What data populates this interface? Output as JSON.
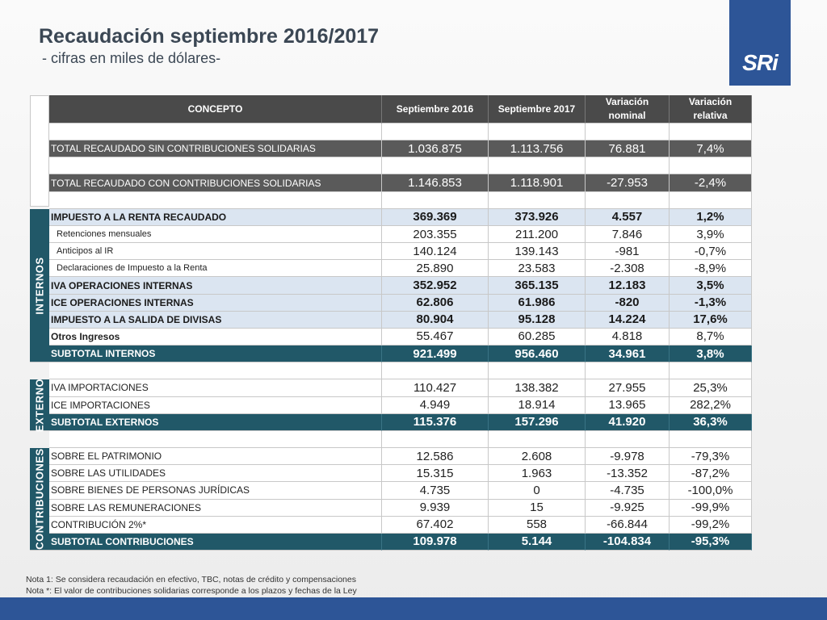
{
  "header": {
    "title": "Recaudación septiembre 2016/2017",
    "subtitle": "- cifras en miles de dólares-",
    "logo": "SRi"
  },
  "table": {
    "columns": [
      "CONCEPTO",
      "Septiembre 2016",
      "Septiembre 2017",
      "Variación nominal",
      "Variación relativa"
    ],
    "top_rows": [
      {
        "concept": "TOTAL RECAUDADO SIN CONTRIBUCIONES SOLIDARIAS",
        "values": [
          "1.036.875",
          "1.113.756",
          "76.881",
          "7,4%"
        ]
      },
      {
        "concept": "TOTAL RECAUDADO CON CONTRIBUCIONES SOLIDARIAS",
        "values": [
          "1.146.853",
          "1.118.901",
          "-27.953",
          "-2,4%"
        ]
      }
    ],
    "groups": [
      {
        "label": "INTERNOS",
        "rows": [
          {
            "concept": "IMPUESTO A LA RENTA RECAUDADO",
            "values": [
              "369.369",
              "373.926",
              "4.557",
              "1,2%"
            ]
          },
          {
            "concept": "Retenciones mensuales",
            "values": [
              "203.355",
              "211.200",
              "7.846",
              "3,9%"
            ]
          },
          {
            "concept": "Anticipos al IR",
            "values": [
              "140.124",
              "139.143",
              "-981",
              "-0,7%"
            ]
          },
          {
            "concept": "Declaraciones de Impuesto a la Renta",
            "values": [
              "25.890",
              "23.583",
              "-2.308",
              "-8,9%"
            ]
          },
          {
            "concept": "IVA OPERACIONES INTERNAS",
            "values": [
              "352.952",
              "365.135",
              "12.183",
              "3,5%"
            ]
          },
          {
            "concept": "ICE OPERACIONES INTERNAS",
            "values": [
              "62.806",
              "61.986",
              "-820",
              "-1,3%"
            ]
          },
          {
            "concept": "IMPUESTO A LA SALIDA DE DIVISAS",
            "values": [
              "80.904",
              "95.128",
              "14.224",
              "17,6%"
            ]
          },
          {
            "concept": "Otros Ingresos",
            "values": [
              "55.467",
              "60.285",
              "4.818",
              "8,7%"
            ]
          },
          {
            "concept": "SUBTOTAL INTERNOS",
            "values": [
              "921.499",
              "956.460",
              "34.961",
              "3,8%"
            ]
          }
        ]
      },
      {
        "label": "EXTERNO",
        "rows": [
          {
            "concept": "IVA IMPORTACIONES",
            "values": [
              "110.427",
              "138.382",
              "27.955",
              "25,3%"
            ]
          },
          {
            "concept": "ICE IMPORTACIONES",
            "values": [
              "4.949",
              "18.914",
              "13.965",
              "282,2%"
            ]
          },
          {
            "concept": "SUBTOTAL EXTERNOS",
            "values": [
              "115.376",
              "157.296",
              "41.920",
              "36,3%"
            ]
          }
        ]
      },
      {
        "label": "CONTRIBUCIONES",
        "rows": [
          {
            "concept": "SOBRE EL PATRIMONIO",
            "values": [
              "12.586",
              "2.608",
              "-9.978",
              "-79,3%"
            ]
          },
          {
            "concept": "SOBRE LAS UTILIDADES",
            "values": [
              "15.315",
              "1.963",
              "-13.352",
              "-87,2%"
            ]
          },
          {
            "concept": "SOBRE BIENES DE PERSONAS JURÍDICAS",
            "values": [
              "4.735",
              "0",
              "-4.735",
              "-100,0%"
            ]
          },
          {
            "concept": "SOBRE LAS REMUNERACIONES",
            "values": [
              "9.939",
              "15",
              "-9.925",
              "-99,9%"
            ]
          },
          {
            "concept": "CONTRIBUCIÓN 2%*",
            "values": [
              "67.402",
              "558",
              "-66.844",
              "-99,2%"
            ]
          },
          {
            "concept": "SUBTOTAL CONTRIBUCIONES",
            "values": [
              "109.978",
              "5.144",
              "-104.834",
              "-95,3%"
            ]
          }
        ]
      }
    ]
  },
  "notes": [
    "Nota 1: Se considera recaudación en efectivo, TBC, notas de crédito y compensaciones",
    "Nota *: El valor de contribuciones solidarias corresponde a los plazos y fechas de la Ley"
  ]
}
